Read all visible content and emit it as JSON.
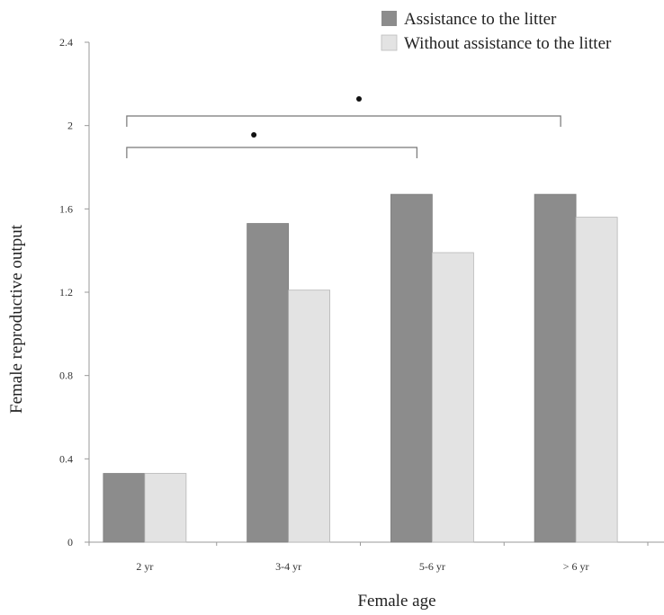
{
  "chart_data": {
    "type": "bar",
    "title": "",
    "xlabel": "Female age",
    "ylabel": "Female reproductive output",
    "categories": [
      "2 yr",
      "3-4 yr",
      "5-6 yr",
      "> 6 yr"
    ],
    "series": [
      {
        "name": "Assistance to the litter",
        "values": [
          0.33,
          1.53,
          1.67,
          1.67
        ],
        "color": "#8c8c8c"
      },
      {
        "name": "Without assistance to the litter",
        "values": [
          0.33,
          1.21,
          1.39,
          1.56
        ],
        "color": "#e3e3e3"
      }
    ],
    "ylim": [
      0,
      2.4
    ],
    "yticks": [
      0,
      0.4,
      0.8,
      1.2,
      1.6,
      2,
      2.4
    ],
    "ytick_labels": [
      "0",
      "0.4",
      "0.8",
      "1.2",
      "1.6",
      "2",
      "2.4"
    ],
    "grid": false,
    "legend_position": "top-right",
    "significance_brackets": [
      {
        "from": "2 yr",
        "to": "5-6 yr",
        "marker": "•"
      },
      {
        "from": "2 yr",
        "to": "> 6 yr",
        "marker": "•"
      }
    ]
  }
}
